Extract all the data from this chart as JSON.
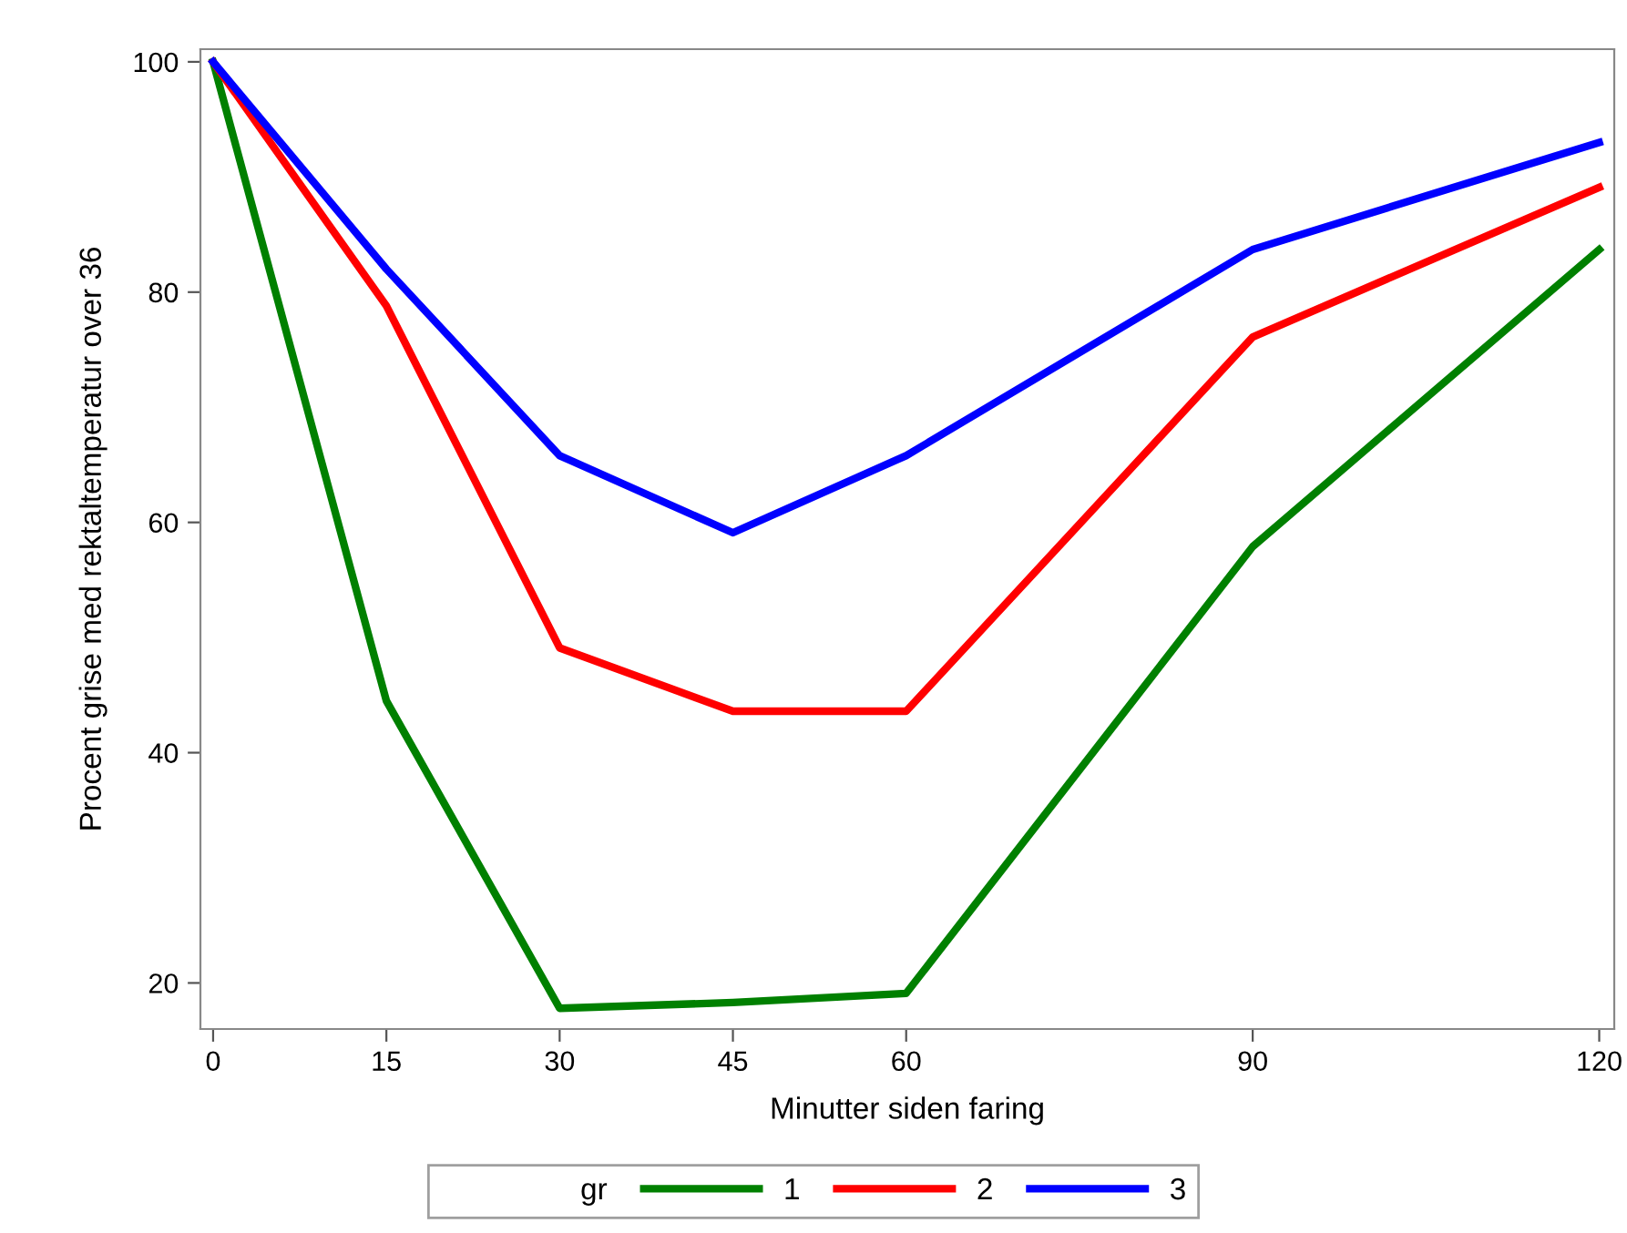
{
  "chart_data": {
    "type": "line",
    "xlabel": "Minutter siden faring",
    "ylabel": "Procent grise med rektaltemperatur over 36",
    "legend_title": "gr",
    "x": [
      0,
      15,
      30,
      45,
      60,
      90,
      120
    ],
    "series": [
      {
        "name": "1",
        "color": "#008000",
        "values": [
          100,
          44.5,
          17.8,
          18.3,
          19.1,
          57.9,
          83.7
        ]
      },
      {
        "name": "2",
        "color": "#ff0000",
        "values": [
          100,
          78.8,
          49.1,
          43.6,
          43.6,
          76.1,
          89.1
        ]
      },
      {
        "name": "3",
        "color": "#0000ff",
        "values": [
          100,
          82.0,
          65.8,
          59.1,
          65.8,
          83.7,
          93.0
        ]
      }
    ],
    "xlim": [
      -1.1,
      121.3
    ],
    "ylim": [
      16,
      101.1
    ],
    "xticks": [
      0,
      15,
      30,
      45,
      60,
      90,
      120
    ],
    "yticks": [
      20,
      40,
      60,
      80,
      100
    ],
    "grid": false,
    "legend": "bottom",
    "marker": "none",
    "line_style": "solid"
  }
}
